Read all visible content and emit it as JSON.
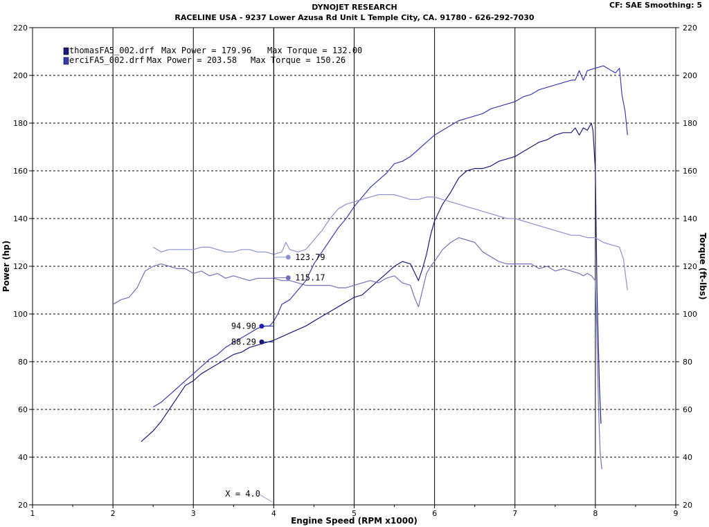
{
  "header": {
    "title": "DYNOJET RESEARCH",
    "subtitle": "RACELINE USA - 9237 Lower Azusa Rd Unit L Temple City, CA. 91780 - 626-292-7030",
    "cf_info": "CF: SAE  Smoothing: 5"
  },
  "chart_data": {
    "type": "line",
    "xlabel": "Engine Speed (RPM x1000)",
    "ylabel": "Power (hp)",
    "y2label": "Torque (ft-lbs)",
    "xlim": [
      1,
      9
    ],
    "ylim": [
      20,
      220
    ],
    "y2lim": [
      20,
      220
    ],
    "xticks": [
      "1",
      "2",
      "3",
      "4",
      "5",
      "6",
      "7",
      "8",
      "9"
    ],
    "yticks": [
      "20",
      "40",
      "60",
      "80",
      "100",
      "120",
      "140",
      "160",
      "180",
      "200",
      "220"
    ],
    "y2ticks": [
      "20",
      "40",
      "60",
      "80",
      "100",
      "120",
      "140",
      "160",
      "180",
      "200",
      "220"
    ],
    "grid": true,
    "legend_position": "top-left",
    "legend": [
      {
        "name": "thomasFA5_002.drf",
        "max_power_text": "Max Power = 179.96",
        "max_torque_text": "Max Torque = 132.00",
        "color": "#1a1a7a"
      },
      {
        "name": "erciFA5_002.drf",
        "max_power_text": "Max Power = 203.58",
        "max_torque_text": "Max Torque = 150.26",
        "color": "#3a3ab0"
      }
    ],
    "cursor": {
      "x": 4.0,
      "label": "X = 4.0"
    },
    "cursor_readouts": [
      {
        "text": "123.79",
        "x": 4.18,
        "y": 123.79,
        "color": "#8e8ed0",
        "side": "right"
      },
      {
        "text": "115.17",
        "x": 4.18,
        "y": 115.17,
        "color": "#7070b8",
        "side": "right"
      },
      {
        "text": "94.90",
        "x": 3.85,
        "y": 94.9,
        "color": "#2020b0",
        "side": "left"
      },
      {
        "text": "88.29",
        "x": 3.85,
        "y": 88.29,
        "color": "#1a1a7a",
        "side": "left"
      }
    ],
    "series": [
      {
        "name": "thomasFA5_002.drf Power",
        "color": "#1a1a7a",
        "x": [
          2.35,
          2.5,
          2.6,
          2.7,
          2.8,
          2.9,
          3.0,
          3.1,
          3.2,
          3.3,
          3.4,
          3.5,
          3.6,
          3.7,
          3.8,
          3.9,
          4.0,
          4.1,
          4.2,
          4.3,
          4.4,
          4.5,
          4.6,
          4.7,
          4.8,
          4.9,
          5.0,
          5.1,
          5.2,
          5.3,
          5.4,
          5.5,
          5.6,
          5.7,
          5.8,
          5.85,
          5.9,
          5.95,
          6.0,
          6.1,
          6.2,
          6.3,
          6.4,
          6.5,
          6.6,
          6.7,
          6.8,
          6.9,
          7.0,
          7.1,
          7.2,
          7.3,
          7.4,
          7.5,
          7.6,
          7.7,
          7.75,
          7.8,
          7.85,
          7.9,
          7.95,
          7.97,
          8.0,
          8.02,
          8.05,
          8.07
        ],
        "y": [
          46.5,
          51,
          55,
          60,
          65,
          70,
          72,
          75,
          77,
          79,
          81,
          83,
          84,
          86,
          87,
          88,
          89,
          90.5,
          92,
          93.5,
          95,
          97,
          99,
          101,
          103,
          105,
          107,
          108,
          111,
          114,
          117,
          120,
          122,
          121,
          114,
          119,
          125,
          133,
          139,
          146,
          151,
          157,
          160,
          161,
          161,
          162,
          164,
          165,
          166,
          168,
          170,
          172,
          173,
          175,
          176,
          176,
          178,
          175,
          178,
          177,
          180,
          177,
          160,
          110,
          70,
          54
        ]
      },
      {
        "name": "thomasFA5_002.drf Torque",
        "color": "#7070b8",
        "x": [
          2.0,
          2.1,
          2.2,
          2.3,
          2.4,
          2.5,
          2.6,
          2.7,
          2.8,
          2.9,
          3.0,
          3.1,
          3.2,
          3.3,
          3.4,
          3.5,
          3.6,
          3.7,
          3.8,
          3.9,
          4.0,
          4.1,
          4.2,
          4.3,
          4.4,
          4.5,
          4.6,
          4.7,
          4.8,
          4.9,
          5.0,
          5.1,
          5.2,
          5.3,
          5.4,
          5.5,
          5.6,
          5.7,
          5.75,
          5.8,
          5.85,
          5.9,
          5.95,
          6.0,
          6.1,
          6.2,
          6.3,
          6.4,
          6.5,
          6.6,
          6.7,
          6.8,
          6.9,
          7.0,
          7.1,
          7.2,
          7.3,
          7.4,
          7.5,
          7.6,
          7.7,
          7.8,
          7.85,
          7.9,
          7.95,
          8.0,
          8.02,
          8.04,
          8.06,
          8.08
        ],
        "y": [
          104,
          106,
          107,
          111,
          118,
          120,
          121,
          120,
          119,
          119,
          117,
          118,
          116,
          117,
          115,
          116,
          115,
          114,
          115,
          115,
          115,
          114,
          114,
          113,
          112,
          112,
          112,
          112,
          111,
          111,
          112,
          113,
          114,
          113,
          115,
          116,
          113,
          112,
          107,
          103,
          110,
          117,
          120,
          122,
          127,
          130,
          132,
          131,
          130,
          126,
          124,
          122,
          121,
          121,
          121,
          121,
          119,
          120,
          118,
          119,
          118,
          117,
          116,
          117,
          116,
          114,
          90,
          60,
          42,
          35
        ]
      },
      {
        "name": "erciFA5_002.drf Power",
        "color": "#3a3ab0",
        "x": [
          2.5,
          2.6,
          2.7,
          2.8,
          2.9,
          3.0,
          3.1,
          3.2,
          3.3,
          3.4,
          3.5,
          3.6,
          3.7,
          3.8,
          3.9,
          3.95,
          4.0,
          4.05,
          4.1,
          4.2,
          4.3,
          4.4,
          4.5,
          4.6,
          4.7,
          4.8,
          4.9,
          5.0,
          5.1,
          5.2,
          5.3,
          5.4,
          5.5,
          5.6,
          5.7,
          5.8,
          5.9,
          6.0,
          6.1,
          6.2,
          6.3,
          6.4,
          6.5,
          6.6,
          6.7,
          6.8,
          6.9,
          7.0,
          7.1,
          7.2,
          7.3,
          7.4,
          7.5,
          7.6,
          7.7,
          7.75,
          7.8,
          7.85,
          7.9,
          8.0,
          8.1,
          8.15,
          8.2,
          8.25,
          8.3,
          8.33,
          8.37,
          8.4
        ],
        "y": [
          61,
          63,
          66,
          69,
          72,
          75,
          78,
          81,
          83,
          86,
          88,
          90,
          92,
          94,
          95,
          95,
          97,
          100,
          104,
          106,
          110,
          114,
          121,
          126,
          131,
          136,
          140,
          145,
          149,
          153,
          156,
          159,
          163,
          164,
          166,
          169,
          172,
          175,
          177,
          179,
          181,
          182,
          183,
          184,
          186,
          187,
          188,
          189,
          191,
          192,
          194,
          195,
          196,
          197,
          198,
          198,
          202,
          198,
          202,
          203,
          204,
          203,
          202,
          201,
          203,
          192,
          185,
          175
        ]
      },
      {
        "name": "erciFA5_002.drf Torque",
        "color": "#8e8ed0",
        "x": [
          2.5,
          2.6,
          2.7,
          2.8,
          2.9,
          3.0,
          3.1,
          3.2,
          3.3,
          3.4,
          3.5,
          3.6,
          3.7,
          3.8,
          3.9,
          4.0,
          4.1,
          4.15,
          4.2,
          4.3,
          4.4,
          4.5,
          4.6,
          4.7,
          4.8,
          4.9,
          5.0,
          5.1,
          5.2,
          5.3,
          5.4,
          5.5,
          5.6,
          5.7,
          5.8,
          5.9,
          6.0,
          6.1,
          6.2,
          6.3,
          6.4,
          6.5,
          6.6,
          6.7,
          6.8,
          6.9,
          7.0,
          7.1,
          7.2,
          7.3,
          7.4,
          7.5,
          7.6,
          7.7,
          7.8,
          7.9,
          8.0,
          8.1,
          8.2,
          8.3,
          8.35,
          8.38,
          8.4
        ],
        "y": [
          128,
          126,
          127,
          127,
          127,
          127,
          128,
          128,
          127,
          126,
          126,
          127,
          127,
          126,
          126,
          125,
          126,
          130,
          127,
          126,
          127,
          131,
          135,
          140,
          144,
          146,
          147,
          148,
          149,
          150,
          150,
          150,
          149,
          148,
          148,
          149,
          149,
          148,
          147,
          146,
          145,
          144,
          143,
          142,
          141,
          140,
          140,
          139,
          138,
          137,
          136,
          135,
          134,
          133,
          133,
          132,
          132,
          130,
          129,
          128,
          123,
          115,
          110
        ]
      }
    ]
  }
}
